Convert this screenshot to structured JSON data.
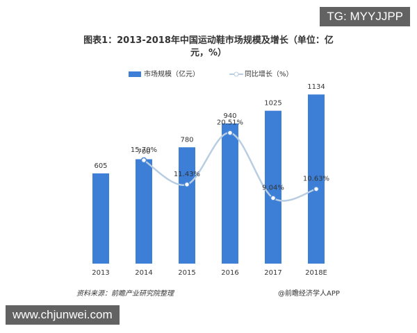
{
  "chart_data": {
    "type": "bar-line",
    "title": "图表1：2013-2018年中国运动鞋市场规模及增长（单位：亿元，%）",
    "categories": [
      "2013",
      "2014",
      "2015",
      "2016",
      "2017",
      "2018E"
    ],
    "series": [
      {
        "name": "市场规模（亿元）",
        "color": "#3d7fd6",
        "values": [
          605,
          700,
          780,
          940,
          1025,
          1134
        ]
      },
      {
        "name": "同比增长（%）",
        "color": "#b9cde2",
        "axis": "y2",
        "values": [
          null,
          15.7,
          11.43,
          20.51,
          9.04,
          10.63
        ],
        "value_labels": [
          null,
          "15.70%",
          "11.43%",
          "20.51%",
          "9.04%",
          "10.63%"
        ]
      }
    ],
    "ylim": [
      0,
      1200
    ],
    "y2lim": [
      -2.5,
      29
    ],
    "source": "资料来源：前瞻产业研究院整理",
    "credit": "@前瞻经济学人APP"
  },
  "watermarks": [
    "TG: MYYJJPP",
    "www.chjunwei.com"
  ]
}
